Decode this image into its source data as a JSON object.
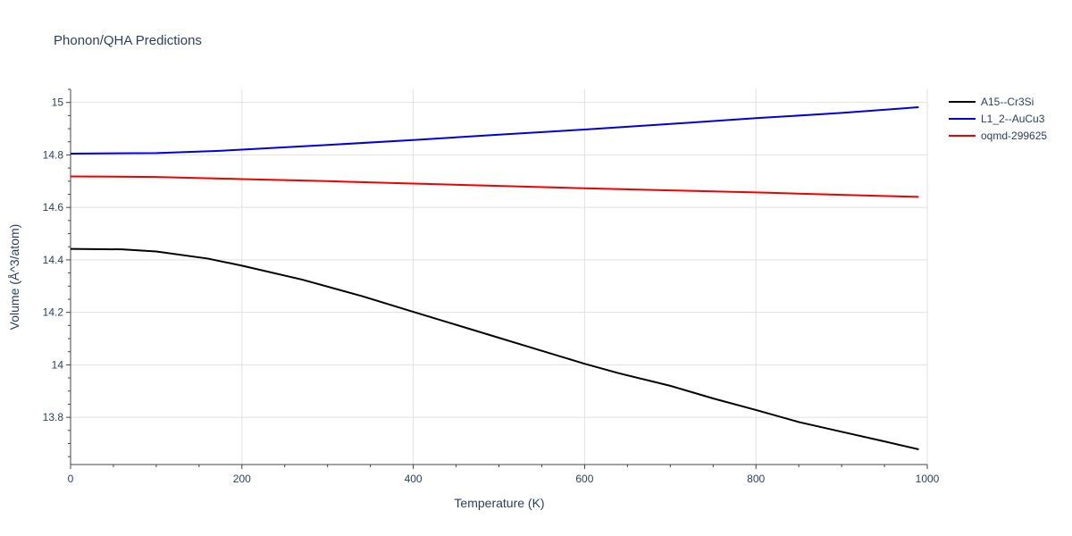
{
  "chart_data": {
    "type": "line",
    "title": "Phonon/QHA Predictions",
    "xlabel": "Temperature (K)",
    "ylabel": "Volume (Å^3/atom)",
    "xlim": [
      0,
      1000
    ],
    "ylim": [
      13.62,
      15.05
    ],
    "x_ticks": [
      0,
      200,
      400,
      600,
      800,
      1000
    ],
    "y_ticks": [
      13.8,
      14,
      14.2,
      14.4,
      14.6,
      14.8,
      15
    ],
    "x_tick_labels": [
      "0",
      "200",
      "400",
      "600",
      "800",
      "1000"
    ],
    "y_tick_labels": [
      "13.8",
      "14",
      "14.2",
      "14.4",
      "14.6",
      "14.8",
      "15"
    ],
    "grid": true,
    "legend_position": "top-right",
    "series": [
      {
        "name": "A15--Cr3Si",
        "color": "#000000",
        "points": [
          [
            0,
            14.442
          ],
          [
            60,
            14.44
          ],
          [
            100,
            14.432
          ],
          [
            160,
            14.405
          ],
          [
            200,
            14.378
          ],
          [
            270,
            14.325
          ],
          [
            340,
            14.262
          ],
          [
            400,
            14.202
          ],
          [
            500,
            14.103
          ],
          [
            600,
            14.004
          ],
          [
            640,
            13.968
          ],
          [
            700,
            13.92
          ],
          [
            750,
            13.872
          ],
          [
            800,
            13.828
          ],
          [
            850,
            13.782
          ],
          [
            900,
            13.745
          ],
          [
            950,
            13.708
          ],
          [
            990,
            13.678
          ]
        ]
      },
      {
        "name": "L1_2--AuCu3",
        "color": "#0000dd",
        "points": [
          [
            0,
            14.805
          ],
          [
            100,
            14.807
          ],
          [
            170,
            14.815
          ],
          [
            200,
            14.82
          ],
          [
            300,
            14.838
          ],
          [
            400,
            14.857
          ],
          [
            500,
            14.877
          ],
          [
            600,
            14.897
          ],
          [
            700,
            14.918
          ],
          [
            800,
            14.94
          ],
          [
            900,
            14.96
          ],
          [
            990,
            14.982
          ]
        ]
      },
      {
        "name": "oqmd-299625",
        "color": "#ee0000",
        "points": [
          [
            0,
            14.718
          ],
          [
            100,
            14.716
          ],
          [
            200,
            14.708
          ],
          [
            300,
            14.7
          ],
          [
            400,
            14.691
          ],
          [
            500,
            14.682
          ],
          [
            600,
            14.673
          ],
          [
            700,
            14.665
          ],
          [
            800,
            14.657
          ],
          [
            900,
            14.648
          ],
          [
            990,
            14.64
          ]
        ]
      }
    ]
  }
}
